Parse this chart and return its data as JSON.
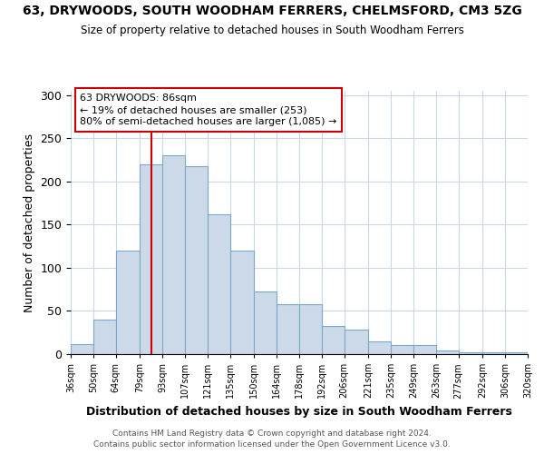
{
  "title": "63, DRYWOODS, SOUTH WOODHAM FERRERS, CHELMSFORD, CM3 5ZG",
  "subtitle": "Size of property relative to detached houses in South Woodham Ferrers",
  "xlabel": "Distribution of detached houses by size in South Woodham Ferrers",
  "ylabel": "Number of detached properties",
  "footer_line1": "Contains HM Land Registry data © Crown copyright and database right 2024.",
  "footer_line2": "Contains public sector information licensed under the Open Government Licence v3.0.",
  "bar_edges": [
    36,
    50,
    64,
    79,
    93,
    107,
    121,
    135,
    150,
    164,
    178,
    192,
    206,
    221,
    235,
    249,
    263,
    277,
    292,
    306,
    320
  ],
  "bar_heights": [
    12,
    40,
    120,
    220,
    230,
    218,
    162,
    120,
    73,
    58,
    58,
    33,
    28,
    15,
    10,
    10,
    4,
    2,
    2,
    2
  ],
  "bar_color": "#ccd9e8",
  "bar_edgecolor": "#7da8c8",
  "property_size": 86,
  "vline_color": "#cc0000",
  "ylim": [
    0,
    305
  ],
  "annotation_title": "63 DRYWOODS: 86sqm",
  "annotation_line1": "← 19% of detached houses are smaller (253)",
  "annotation_line2": "80% of semi-detached houses are larger (1,085) →",
  "annotation_box_color": "#ffffff",
  "annotation_box_edgecolor": "#cc0000",
  "tick_labels": [
    "36sqm",
    "50sqm",
    "64sqm",
    "79sqm",
    "93sqm",
    "107sqm",
    "121sqm",
    "135sqm",
    "150sqm",
    "164sqm",
    "178sqm",
    "192sqm",
    "206sqm",
    "221sqm",
    "235sqm",
    "249sqm",
    "263sqm",
    "277sqm",
    "292sqm",
    "306sqm",
    "320sqm"
  ]
}
